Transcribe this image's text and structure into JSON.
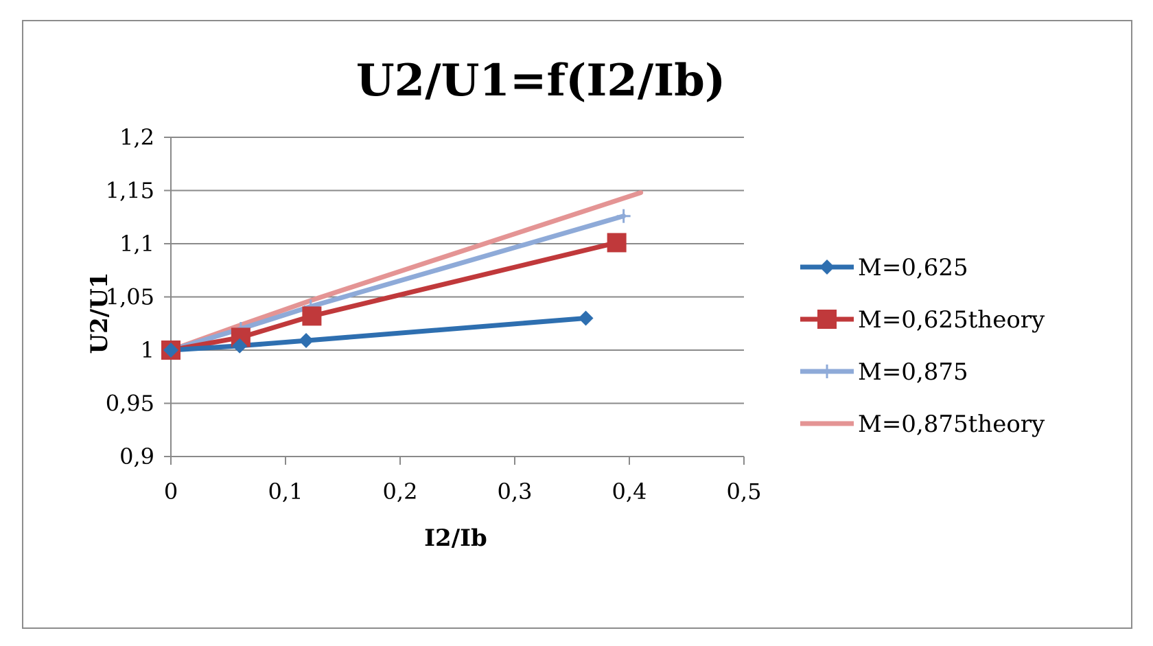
{
  "chart_data": {
    "type": "line",
    "title": "U2/U1=f(I2/Ib)",
    "xlabel": "I2/Ib",
    "ylabel": "U2/U1",
    "xlim": [
      0,
      0.5
    ],
    "ylim": [
      0.9,
      1.2
    ],
    "x_ticks": [
      "0",
      "0,1",
      "0,2",
      "0,3",
      "0,4",
      "0,5"
    ],
    "y_ticks": [
      "0,9",
      "0,95",
      "1",
      "1,05",
      "1,1",
      "1,15",
      "1,2"
    ],
    "grid": true,
    "legend_position": "right",
    "series": [
      {
        "name": "M=0,625",
        "color": "#2e6fb0",
        "marker": "diamond",
        "points": [
          [
            0,
            1.0
          ],
          [
            0.06,
            1.004
          ],
          [
            0.118,
            1.009
          ],
          [
            0.362,
            1.03
          ]
        ]
      },
      {
        "name": "M=0,625theory",
        "color": "#c0393b",
        "marker": "square",
        "points": [
          [
            0,
            1.0
          ],
          [
            0.061,
            1.012
          ],
          [
            0.123,
            1.032
          ],
          [
            0.389,
            1.101
          ]
        ]
      },
      {
        "name": "M=0,875",
        "color": "#8eaad8",
        "marker": "plus",
        "points": [
          [
            0,
            1.0
          ],
          [
            0.061,
            1.02
          ],
          [
            0.122,
            1.041
          ],
          [
            0.395,
            1.126
          ]
        ]
      },
      {
        "name": "M=0,875theory",
        "color": "#e49494",
        "marker": "none",
        "points": [
          [
            0,
            1.0
          ],
          [
            0.062,
            1.024
          ],
          [
            0.123,
            1.047
          ],
          [
            0.41,
            1.148
          ]
        ]
      }
    ]
  }
}
